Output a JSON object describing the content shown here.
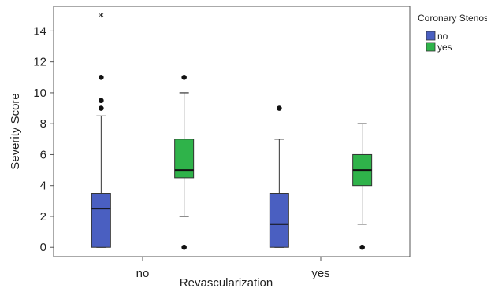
{
  "chart_data": {
    "type": "box",
    "title": "",
    "xlabel": "Revascularization",
    "ylabel": "Severity Score",
    "ylim": [
      -0.6,
      15.6
    ],
    "yticks": [
      0,
      2,
      4,
      6,
      8,
      10,
      12,
      14
    ],
    "categories": [
      "no",
      "yes"
    ],
    "legend": {
      "title": "Coronary Stenosis",
      "position": "top-right"
    },
    "series": [
      {
        "name": "no",
        "color": "#4a5fc1",
        "boxes": [
          {
            "category": "no",
            "min": 0,
            "q1": 0,
            "median": 2.5,
            "q3": 3.5,
            "max": 8.5,
            "outliers": [
              9,
              9.5,
              11
            ],
            "extremes": [
              15
            ]
          },
          {
            "category": "yes",
            "min": 0,
            "q1": 0,
            "median": 1.5,
            "q3": 3.5,
            "max": 7,
            "outliers": [
              9
            ],
            "extremes": []
          }
        ]
      },
      {
        "name": "yes",
        "color": "#2fb34a",
        "boxes": [
          {
            "category": "no",
            "min": 2,
            "q1": 4.5,
            "median": 5,
            "q3": 7,
            "max": 10,
            "outliers": [
              0,
              11
            ],
            "extremes": []
          },
          {
            "category": "yes",
            "min": 1.5,
            "q1": 4,
            "median": 5,
            "q3": 6,
            "max": 8,
            "outliers": [
              0
            ],
            "extremes": []
          }
        ]
      }
    ]
  }
}
